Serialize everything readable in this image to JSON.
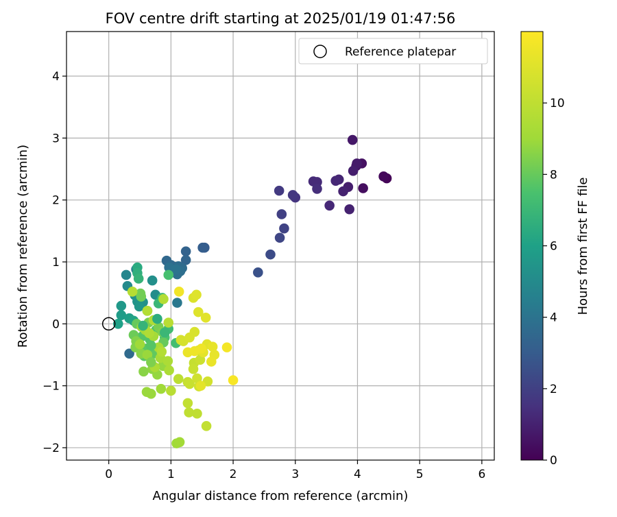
{
  "chart_data": {
    "type": "scatter",
    "title": "FOV centre drift starting at 2025/01/19 01:47:56",
    "xlabel": "Angular distance from reference (arcmin)",
    "ylabel": "Rotation from reference (arcmin)",
    "xlim": [
      -0.68,
      6.2
    ],
    "ylim": [
      -2.2,
      4.72
    ],
    "xticks": [
      0,
      1,
      2,
      3,
      4,
      5,
      6
    ],
    "xtick_labels": [
      "0",
      "1",
      "2",
      "3",
      "4",
      "5",
      "6"
    ],
    "yticks": [
      -2,
      -1,
      0,
      1,
      2,
      3,
      4
    ],
    "ytick_labels": [
      "−2",
      "−1",
      "0",
      "1",
      "2",
      "3",
      "4"
    ],
    "grid": true,
    "legend": {
      "position": "top-right",
      "entries": [
        "Reference platepar"
      ]
    },
    "reference_point": {
      "x": 0,
      "y": 0,
      "label": "Reference platepar"
    },
    "colorbar": {
      "label": "Hours from first FF file",
      "range": [
        0,
        12
      ],
      "ticks": [
        0,
        2,
        4,
        6,
        8,
        10
      ],
      "tick_labels": [
        "0",
        "2",
        "4",
        "6",
        "8",
        "10"
      ],
      "colormap": "viridis"
    },
    "points": [
      {
        "x": 4.47,
        "y": 2.35,
        "c": 0.1
      },
      {
        "x": 4.42,
        "y": 2.38,
        "c": 0.2
      },
      {
        "x": 4.09,
        "y": 2.19,
        "c": 0.4
      },
      {
        "x": 4.07,
        "y": 2.59,
        "c": 0.5
      },
      {
        "x": 3.98,
        "y": 2.55,
        "c": 0.6
      },
      {
        "x": 3.92,
        "y": 2.97,
        "c": 0.7
      },
      {
        "x": 3.99,
        "y": 2.59,
        "c": 0.8
      },
      {
        "x": 3.93,
        "y": 2.47,
        "c": 0.9
      },
      {
        "x": 3.85,
        "y": 2.21,
        "c": 0.9
      },
      {
        "x": 3.87,
        "y": 1.85,
        "c": 1.0
      },
      {
        "x": 3.77,
        "y": 2.14,
        "c": 1.0
      },
      {
        "x": 3.7,
        "y": 2.33,
        "c": 1.1
      },
      {
        "x": 3.65,
        "y": 2.31,
        "c": 1.2
      },
      {
        "x": 3.55,
        "y": 1.91,
        "c": 1.2
      },
      {
        "x": 3.35,
        "y": 2.29,
        "c": 1.3
      },
      {
        "x": 3.29,
        "y": 2.3,
        "c": 1.3
      },
      {
        "x": 3.35,
        "y": 2.18,
        "c": 1.4
      },
      {
        "x": 3.0,
        "y": 2.04,
        "c": 1.6
      },
      {
        "x": 2.96,
        "y": 2.08,
        "c": 1.7
      },
      {
        "x": 2.74,
        "y": 2.15,
        "c": 1.8
      },
      {
        "x": 2.78,
        "y": 1.77,
        "c": 2.0
      },
      {
        "x": 2.82,
        "y": 1.54,
        "c": 2.1
      },
      {
        "x": 2.75,
        "y": 1.39,
        "c": 2.2
      },
      {
        "x": 2.6,
        "y": 1.12,
        "c": 2.4
      },
      {
        "x": 2.4,
        "y": 0.83,
        "c": 2.6
      },
      {
        "x": 1.54,
        "y": 1.23,
        "c": 3.0
      },
      {
        "x": 1.51,
        "y": 1.23,
        "c": 3.1
      },
      {
        "x": 1.24,
        "y": 1.17,
        "c": 3.3
      },
      {
        "x": 1.24,
        "y": 1.03,
        "c": 3.4
      },
      {
        "x": 0.93,
        "y": 1.02,
        "c": 3.5
      },
      {
        "x": 1.0,
        "y": 0.95,
        "c": 3.6
      },
      {
        "x": 1.05,
        "y": 0.92,
        "c": 3.6
      },
      {
        "x": 1.12,
        "y": 0.93,
        "c": 3.7
      },
      {
        "x": 1.18,
        "y": 0.9,
        "c": 3.7
      },
      {
        "x": 1.15,
        "y": 0.85,
        "c": 3.8
      },
      {
        "x": 1.1,
        "y": 0.8,
        "c": 3.8
      },
      {
        "x": 1.0,
        "y": 0.86,
        "c": 3.9
      },
      {
        "x": 0.97,
        "y": 0.91,
        "c": 3.9
      },
      {
        "x": 1.08,
        "y": 0.88,
        "c": 4.0
      },
      {
        "x": 0.33,
        "y": -0.48,
        "c": 3.6
      },
      {
        "x": 1.1,
        "y": 0.34,
        "c": 4.2
      },
      {
        "x": 0.44,
        "y": 0.88,
        "c": 4.5
      },
      {
        "x": 0.28,
        "y": 0.79,
        "c": 4.8
      },
      {
        "x": 0.3,
        "y": 0.61,
        "c": 5.0
      },
      {
        "x": 0.42,
        "y": 0.46,
        "c": 5.2
      },
      {
        "x": 0.46,
        "y": 0.36,
        "c": 5.4
      },
      {
        "x": 0.55,
        "y": 0.35,
        "c": 5.3
      },
      {
        "x": 0.49,
        "y": 0.28,
        "c": 5.5
      },
      {
        "x": 0.75,
        "y": 0.47,
        "c": 5.1
      },
      {
        "x": 0.7,
        "y": 0.7,
        "c": 5.2
      },
      {
        "x": 0.2,
        "y": 0.29,
        "c": 5.6
      },
      {
        "x": 0.2,
        "y": 0.14,
        "c": 5.8
      },
      {
        "x": 0.15,
        "y": 0.0,
        "c": 6.0
      },
      {
        "x": 0.33,
        "y": 0.09,
        "c": 5.9
      },
      {
        "x": 0.4,
        "y": 0.05,
        "c": 6.1
      },
      {
        "x": 0.46,
        "y": 0.91,
        "c": 6.4
      },
      {
        "x": 0.46,
        "y": 0.82,
        "c": 6.6
      },
      {
        "x": 0.48,
        "y": 0.73,
        "c": 6.8
      },
      {
        "x": 0.62,
        "y": 0.21,
        "c": 6.9
      },
      {
        "x": 0.8,
        "y": 0.33,
        "c": 7.0
      },
      {
        "x": 0.86,
        "y": 0.42,
        "c": 7.1
      },
      {
        "x": 0.96,
        "y": 0.79,
        "c": 7.4
      },
      {
        "x": 0.96,
        "y": -0.08,
        "c": 7.2
      },
      {
        "x": 1.08,
        "y": -0.31,
        "c": 7.3
      },
      {
        "x": 0.9,
        "y": -0.22,
        "c": 7.5
      },
      {
        "x": 0.76,
        "y": -0.1,
        "c": 7.6
      },
      {
        "x": 0.66,
        "y": -0.25,
        "c": 7.6
      },
      {
        "x": 0.54,
        "y": -0.2,
        "c": 7.7
      },
      {
        "x": 0.6,
        "y": -0.4,
        "c": 7.8
      },
      {
        "x": 0.57,
        "y": -0.52,
        "c": 7.8
      },
      {
        "x": 0.72,
        "y": -0.48,
        "c": 7.9
      },
      {
        "x": 0.88,
        "y": -0.3,
        "c": 8.0
      },
      {
        "x": 0.45,
        "y": 0.0,
        "c": 8.0
      },
      {
        "x": 0.4,
        "y": -0.18,
        "c": 8.1
      },
      {
        "x": 0.51,
        "y": 0.49,
        "c": 8.2
      },
      {
        "x": 0.64,
        "y": 0.02,
        "c": 8.3
      },
      {
        "x": 0.8,
        "y": -0.05,
        "c": 8.3
      },
      {
        "x": 0.86,
        "y": -0.13,
        "c": 8.4
      },
      {
        "x": 0.44,
        "y": -0.28,
        "c": 8.5
      },
      {
        "x": 0.43,
        "y": -0.38,
        "c": 8.5
      },
      {
        "x": 0.52,
        "y": -0.48,
        "c": 8.6
      },
      {
        "x": 0.56,
        "y": -0.77,
        "c": 8.6
      },
      {
        "x": 0.7,
        "y": -0.73,
        "c": 8.7
      },
      {
        "x": 0.78,
        "y": -0.82,
        "c": 8.8
      },
      {
        "x": 0.87,
        "y": -0.68,
        "c": 8.8
      },
      {
        "x": 0.61,
        "y": -1.1,
        "c": 8.9
      },
      {
        "x": 0.68,
        "y": -1.13,
        "c": 8.9
      },
      {
        "x": 0.84,
        "y": -1.05,
        "c": 9.0
      },
      {
        "x": 1.09,
        "y": -1.93,
        "c": 9.0
      },
      {
        "x": 1.14,
        "y": -1.91,
        "c": 9.1
      },
      {
        "x": 0.53,
        "y": -0.05,
        "c": 9.1
      },
      {
        "x": 0.59,
        "y": -0.1,
        "c": 9.2
      },
      {
        "x": 0.72,
        "y": -0.2,
        "c": 9.2
      },
      {
        "x": 0.8,
        "y": -0.38,
        "c": 9.3
      },
      {
        "x": 0.83,
        "y": -0.55,
        "c": 9.3
      },
      {
        "x": 0.95,
        "y": -0.6,
        "c": 9.4
      },
      {
        "x": 0.97,
        "y": -0.75,
        "c": 9.4
      },
      {
        "x": 0.65,
        "y": -0.15,
        "c": 9.5
      },
      {
        "x": 0.72,
        "y": 0.06,
        "c": 9.5
      },
      {
        "x": 0.62,
        "y": 0.21,
        "c": 9.6
      },
      {
        "x": 0.88,
        "y": 0.4,
        "c": 9.6
      },
      {
        "x": 0.38,
        "y": 0.52,
        "c": 9.7
      },
      {
        "x": 0.96,
        "y": 0.02,
        "c": 9.8
      },
      {
        "x": 1.0,
        "y": -1.08,
        "c": 9.8
      },
      {
        "x": 1.12,
        "y": -0.89,
        "c": 9.9
      },
      {
        "x": 1.29,
        "y": -1.43,
        "c": 10.0
      },
      {
        "x": 1.42,
        "y": -1.45,
        "c": 10.0
      },
      {
        "x": 1.27,
        "y": -1.28,
        "c": 10.1
      },
      {
        "x": 1.57,
        "y": -1.65,
        "c": 10.1
      },
      {
        "x": 1.27,
        "y": -0.94,
        "c": 10.2
      },
      {
        "x": 1.3,
        "y": -0.97,
        "c": 10.3
      },
      {
        "x": 1.37,
        "y": -0.63,
        "c": 10.2
      },
      {
        "x": 1.36,
        "y": -0.73,
        "c": 10.3
      },
      {
        "x": 1.47,
        "y": -0.58,
        "c": 10.4
      },
      {
        "x": 1.42,
        "y": -0.88,
        "c": 10.5
      },
      {
        "x": 1.45,
        "y": -1.01,
        "c": 10.5
      },
      {
        "x": 1.59,
        "y": -0.93,
        "c": 10.6
      },
      {
        "x": 1.44,
        "y": -0.43,
        "c": 10.6
      },
      {
        "x": 1.2,
        "y": -0.28,
        "c": 10.7
      },
      {
        "x": 1.16,
        "y": -0.26,
        "c": 10.7
      },
      {
        "x": 1.3,
        "y": -0.22,
        "c": 10.8
      },
      {
        "x": 1.38,
        "y": -0.13,
        "c": 10.8
      },
      {
        "x": 1.36,
        "y": 0.42,
        "c": 10.9
      },
      {
        "x": 1.41,
        "y": 0.47,
        "c": 11.0
      },
      {
        "x": 1.44,
        "y": 0.19,
        "c": 11.0
      },
      {
        "x": 1.56,
        "y": 0.1,
        "c": 11.1
      },
      {
        "x": 1.58,
        "y": -0.33,
        "c": 11.1
      },
      {
        "x": 1.52,
        "y": -0.46,
        "c": 11.2
      },
      {
        "x": 1.67,
        "y": -0.37,
        "c": 11.3
      },
      {
        "x": 1.7,
        "y": -0.5,
        "c": 11.3
      },
      {
        "x": 1.65,
        "y": -0.61,
        "c": 11.4
      },
      {
        "x": 1.27,
        "y": -0.46,
        "c": 11.4
      },
      {
        "x": 1.38,
        "y": -0.44,
        "c": 11.5
      },
      {
        "x": 1.49,
        "y": -0.4,
        "c": 11.5
      },
      {
        "x": 1.13,
        "y": 0.52,
        "c": 11.6
      },
      {
        "x": 1.9,
        "y": -0.38,
        "c": 11.7
      },
      {
        "x": 2.0,
        "y": -0.91,
        "c": 11.8
      },
      {
        "x": 1.48,
        "y": -1.0,
        "c": 11.2
      },
      {
        "x": 0.52,
        "y": 0.44,
        "c": 8.2
      },
      {
        "x": 0.62,
        "y": -0.5,
        "c": 8.9
      },
      {
        "x": 0.74,
        "y": -0.7,
        "c": 9.4
      },
      {
        "x": 0.5,
        "y": -0.33,
        "c": 9.0
      },
      {
        "x": 0.85,
        "y": -0.45,
        "c": 9.6
      },
      {
        "x": 0.68,
        "y": -0.62,
        "c": 8.4
      },
      {
        "x": 0.78,
        "y": 0.08,
        "c": 6.5
      },
      {
        "x": 0.55,
        "y": -0.03,
        "c": 6.8
      },
      {
        "x": 0.9,
        "y": -0.14,
        "c": 7.0
      },
      {
        "x": 0.68,
        "y": -0.35,
        "c": 7.7
      }
    ]
  }
}
